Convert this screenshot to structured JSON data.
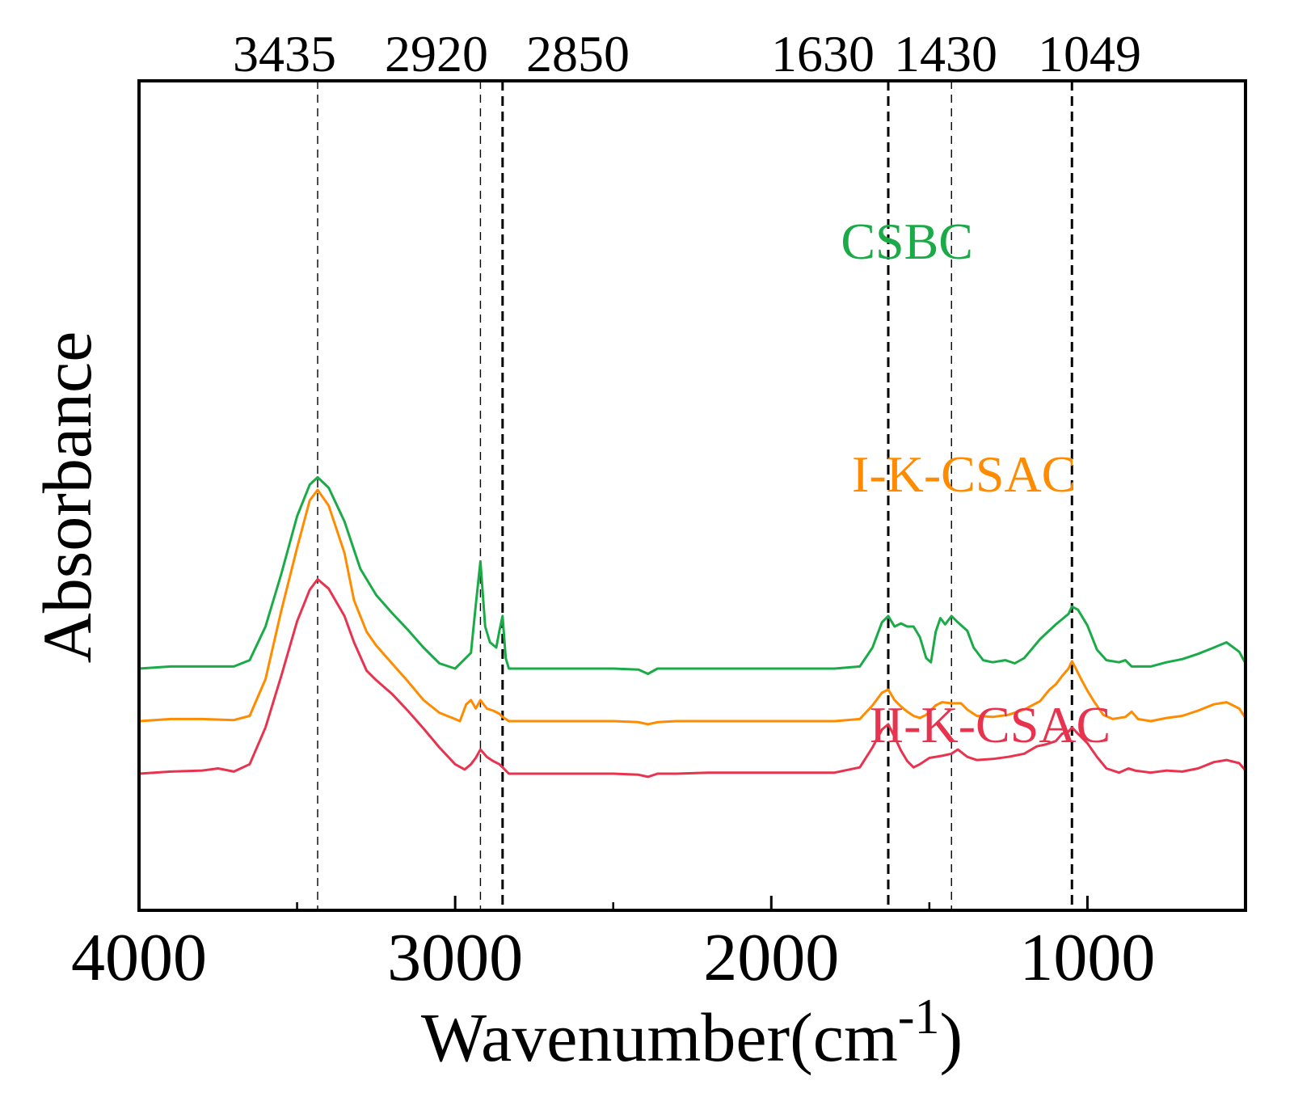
{
  "chart_data": {
    "type": "line",
    "title": "",
    "xlabel": "Wavenumber(cm",
    "xlabel_sup": "-1",
    "xlabel_close": ")",
    "ylabel": "Absorbance",
    "xlim": [
      4000,
      500
    ],
    "x_reversed": true,
    "y_ticks_shown": false,
    "x_ticks": [
      4000,
      3000,
      2000,
      1000
    ],
    "x_tick_labels": [
      "4000",
      "3000",
      "2000",
      "1000"
    ],
    "x_minor_ticks": [
      3500,
      2500,
      1500
    ],
    "reference_lines": [
      {
        "x": 3435,
        "label": "3435",
        "style": "thin"
      },
      {
        "x": 2920,
        "label": "2920",
        "style": "thin"
      },
      {
        "x": 2850,
        "label": "2850",
        "style": "bold"
      },
      {
        "x": 1630,
        "label": "1630",
        "style": "bold"
      },
      {
        "x": 1430,
        "label": "1430",
        "style": "thin"
      },
      {
        "x": 1049,
        "label": "1049",
        "style": "bold"
      }
    ],
    "series": [
      {
        "name": "CSBC",
        "color": "#1aab48",
        "label_at_x": 1780,
        "baseline": 10.0,
        "points": [
          [
            4000,
            10.0
          ],
          [
            3900,
            10.2
          ],
          [
            3800,
            10.2
          ],
          [
            3700,
            10.2
          ],
          [
            3650,
            10.8
          ],
          [
            3600,
            14.0
          ],
          [
            3550,
            19.0
          ],
          [
            3500,
            24.5
          ],
          [
            3460,
            27.5
          ],
          [
            3435,
            28.2
          ],
          [
            3400,
            27.2
          ],
          [
            3350,
            24.0
          ],
          [
            3300,
            19.5
          ],
          [
            3250,
            17.0
          ],
          [
            3200,
            15.3
          ],
          [
            3150,
            13.7
          ],
          [
            3100,
            12.0
          ],
          [
            3050,
            10.5
          ],
          [
            3000,
            10.0
          ],
          [
            2980,
            10.6
          ],
          [
            2950,
            11.5
          ],
          [
            2935,
            16.0
          ],
          [
            2920,
            20.2
          ],
          [
            2905,
            14.0
          ],
          [
            2890,
            12.5
          ],
          [
            2870,
            12.0
          ],
          [
            2860,
            13.6
          ],
          [
            2850,
            15.0
          ],
          [
            2840,
            11.0
          ],
          [
            2830,
            10.0
          ],
          [
            2700,
            10.0
          ],
          [
            2600,
            10.0
          ],
          [
            2500,
            10.0
          ],
          [
            2420,
            9.9
          ],
          [
            2390,
            9.5
          ],
          [
            2360,
            10.0
          ],
          [
            2300,
            10.0
          ],
          [
            2200,
            10.0
          ],
          [
            2000,
            10.0
          ],
          [
            1800,
            10.0
          ],
          [
            1720,
            10.2
          ],
          [
            1680,
            12.0
          ],
          [
            1650,
            14.4
          ],
          [
            1630,
            15.0
          ],
          [
            1610,
            14.0
          ],
          [
            1590,
            14.3
          ],
          [
            1570,
            14.0
          ],
          [
            1550,
            14.0
          ],
          [
            1530,
            13.0
          ],
          [
            1510,
            11.0
          ],
          [
            1495,
            10.6
          ],
          [
            1480,
            13.5
          ],
          [
            1465,
            14.8
          ],
          [
            1450,
            14.2
          ],
          [
            1430,
            15.0
          ],
          [
            1410,
            14.4
          ],
          [
            1380,
            13.6
          ],
          [
            1360,
            12.0
          ],
          [
            1330,
            10.8
          ],
          [
            1300,
            10.6
          ],
          [
            1260,
            10.8
          ],
          [
            1230,
            10.5
          ],
          [
            1200,
            11.0
          ],
          [
            1150,
            12.8
          ],
          [
            1100,
            14.2
          ],
          [
            1060,
            15.2
          ],
          [
            1049,
            15.9
          ],
          [
            1030,
            15.6
          ],
          [
            1000,
            14.1
          ],
          [
            970,
            11.8
          ],
          [
            940,
            10.8
          ],
          [
            900,
            10.6
          ],
          [
            880,
            10.8
          ],
          [
            860,
            10.2
          ],
          [
            800,
            10.2
          ],
          [
            750,
            10.6
          ],
          [
            700,
            10.9
          ],
          [
            650,
            11.4
          ],
          [
            600,
            12.0
          ],
          [
            560,
            12.5
          ],
          [
            520,
            11.6
          ],
          [
            500,
            10.5
          ]
        ]
      },
      {
        "name": "I-K-CSAC",
        "color": "#ff8c00",
        "label_at_x": 1745,
        "baseline": 5.0,
        "points": [
          [
            4000,
            5.0
          ],
          [
            3900,
            5.2
          ],
          [
            3800,
            5.2
          ],
          [
            3700,
            5.1
          ],
          [
            3650,
            5.5
          ],
          [
            3600,
            9.0
          ],
          [
            3550,
            15.5
          ],
          [
            3500,
            21.5
          ],
          [
            3460,
            26.0
          ],
          [
            3435,
            27.0
          ],
          [
            3400,
            25.5
          ],
          [
            3350,
            21.0
          ],
          [
            3320,
            16.5
          ],
          [
            3280,
            13.5
          ],
          [
            3250,
            12.2
          ],
          [
            3200,
            10.5
          ],
          [
            3150,
            8.8
          ],
          [
            3100,
            7.0
          ],
          [
            3050,
            5.8
          ],
          [
            3000,
            5.2
          ],
          [
            2985,
            5.0
          ],
          [
            2965,
            6.6
          ],
          [
            2950,
            7.0
          ],
          [
            2935,
            6.2
          ],
          [
            2920,
            7.0
          ],
          [
            2900,
            6.2
          ],
          [
            2880,
            6.0
          ],
          [
            2860,
            5.7
          ],
          [
            2850,
            5.4
          ],
          [
            2830,
            5.0
          ],
          [
            2700,
            5.0
          ],
          [
            2600,
            5.0
          ],
          [
            2500,
            5.0
          ],
          [
            2420,
            4.9
          ],
          [
            2390,
            4.7
          ],
          [
            2360,
            4.9
          ],
          [
            2300,
            5.0
          ],
          [
            2200,
            5.0
          ],
          [
            2000,
            5.0
          ],
          [
            1800,
            5.0
          ],
          [
            1720,
            5.2
          ],
          [
            1680,
            6.5
          ],
          [
            1650,
            7.7
          ],
          [
            1630,
            8.0
          ],
          [
            1610,
            7.0
          ],
          [
            1590,
            6.4
          ],
          [
            1570,
            5.9
          ],
          [
            1550,
            5.5
          ],
          [
            1530,
            5.3
          ],
          [
            1510,
            5.6
          ],
          [
            1480,
            6.5
          ],
          [
            1460,
            6.8
          ],
          [
            1430,
            6.7
          ],
          [
            1400,
            6.7
          ],
          [
            1380,
            6.1
          ],
          [
            1350,
            5.5
          ],
          [
            1300,
            5.4
          ],
          [
            1250,
            5.6
          ],
          [
            1200,
            6.1
          ],
          [
            1150,
            6.9
          ],
          [
            1120,
            8.0
          ],
          [
            1100,
            8.5
          ],
          [
            1080,
            9.3
          ],
          [
            1060,
            10.0
          ],
          [
            1049,
            10.7
          ],
          [
            1040,
            10.2
          ],
          [
            1020,
            9.0
          ],
          [
            1000,
            7.9
          ],
          [
            980,
            6.9
          ],
          [
            950,
            5.6
          ],
          [
            920,
            5.2
          ],
          [
            880,
            5.4
          ],
          [
            860,
            5.9
          ],
          [
            840,
            5.2
          ],
          [
            800,
            5.0
          ],
          [
            750,
            5.3
          ],
          [
            700,
            5.5
          ],
          [
            650,
            6.0
          ],
          [
            600,
            6.6
          ],
          [
            560,
            6.8
          ],
          [
            520,
            6.2
          ],
          [
            500,
            5.3
          ]
        ]
      },
      {
        "name": "II-K-CSAC",
        "color": "#e8334f",
        "label_at_x": 1690,
        "baseline": 0.0,
        "points": [
          [
            4000,
            0.0
          ],
          [
            3900,
            0.2
          ],
          [
            3800,
            0.3
          ],
          [
            3750,
            0.5
          ],
          [
            3700,
            0.2
          ],
          [
            3650,
            0.9
          ],
          [
            3600,
            4.4
          ],
          [
            3550,
            9.3
          ],
          [
            3500,
            14.5
          ],
          [
            3460,
            17.5
          ],
          [
            3435,
            18.5
          ],
          [
            3400,
            17.6
          ],
          [
            3350,
            15.0
          ],
          [
            3320,
            12.5
          ],
          [
            3280,
            9.8
          ],
          [
            3250,
            8.9
          ],
          [
            3200,
            7.6
          ],
          [
            3150,
            6.0
          ],
          [
            3100,
            4.3
          ],
          [
            3050,
            2.5
          ],
          [
            3000,
            0.9
          ],
          [
            2970,
            0.4
          ],
          [
            2950,
            0.9
          ],
          [
            2935,
            1.5
          ],
          [
            2920,
            2.3
          ],
          [
            2900,
            1.6
          ],
          [
            2880,
            1.2
          ],
          [
            2860,
            0.9
          ],
          [
            2850,
            0.6
          ],
          [
            2830,
            0.0
          ],
          [
            2700,
            0.0
          ],
          [
            2600,
            0.0
          ],
          [
            2500,
            0.0
          ],
          [
            2420,
            -0.1
          ],
          [
            2390,
            -0.3
          ],
          [
            2360,
            0.0
          ],
          [
            2300,
            0.0
          ],
          [
            2200,
            0.1
          ],
          [
            2000,
            0.1
          ],
          [
            1800,
            0.1
          ],
          [
            1720,
            0.6
          ],
          [
            1680,
            2.5
          ],
          [
            1650,
            4.2
          ],
          [
            1630,
            4.7
          ],
          [
            1610,
            3.5
          ],
          [
            1590,
            2.2
          ],
          [
            1570,
            1.2
          ],
          [
            1550,
            0.6
          ],
          [
            1530,
            0.9
          ],
          [
            1500,
            1.5
          ],
          [
            1460,
            1.7
          ],
          [
            1430,
            1.9
          ],
          [
            1410,
            2.3
          ],
          [
            1380,
            1.6
          ],
          [
            1350,
            1.3
          ],
          [
            1300,
            1.4
          ],
          [
            1250,
            1.6
          ],
          [
            1200,
            1.9
          ],
          [
            1160,
            2.6
          ],
          [
            1130,
            2.8
          ],
          [
            1100,
            3.1
          ],
          [
            1080,
            3.8
          ],
          [
            1060,
            4.0
          ],
          [
            1049,
            4.4
          ],
          [
            1030,
            3.8
          ],
          [
            1000,
            2.9
          ],
          [
            970,
            1.6
          ],
          [
            940,
            0.5
          ],
          [
            900,
            0.1
          ],
          [
            870,
            0.5
          ],
          [
            850,
            0.3
          ],
          [
            800,
            0.1
          ],
          [
            750,
            0.3
          ],
          [
            700,
            0.2
          ],
          [
            650,
            0.5
          ],
          [
            600,
            1.1
          ],
          [
            560,
            1.3
          ],
          [
            520,
            1.0
          ],
          [
            500,
            0.3
          ]
        ]
      }
    ]
  }
}
